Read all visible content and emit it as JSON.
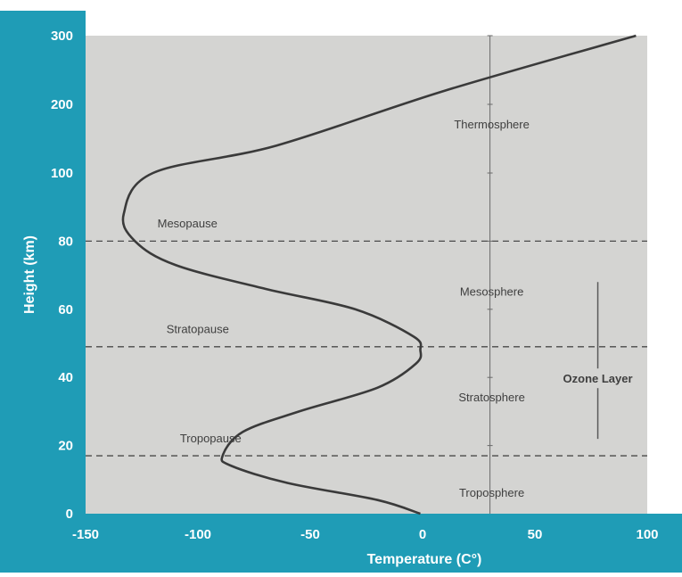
{
  "colors": {
    "frame": "#1f9cb6",
    "plot_bg": "#d4d4d2",
    "curve": "#3a3a3a",
    "dashed": "#4a4a4a",
    "text_dark": "#3f3f3f",
    "tick_text": "#ffffff"
  },
  "chart_data": {
    "type": "line",
    "title": "",
    "xlabel": "Temperature (C°)",
    "ylabel": "Height (km)",
    "xlim": [
      -150,
      100
    ],
    "xticks": [
      -150,
      -100,
      -50,
      0,
      50,
      100
    ],
    "xtick_labels": [
      "-150",
      "-100",
      "-50",
      "0",
      "50",
      "100"
    ],
    "ytick_labels": [
      "0",
      "20",
      "40",
      "60",
      "80",
      "100",
      "200",
      "300"
    ],
    "y_axis_note": "non-linear above 100 km",
    "grid": false,
    "series": [
      {
        "name": "",
        "points": [
          {
            "x": -1,
            "y": 0
          },
          {
            "x": -20,
            "y": 4
          },
          {
            "x": -60,
            "y": 9
          },
          {
            "x": -85,
            "y": 14
          },
          {
            "x": -89,
            "y": 17
          },
          {
            "x": -80,
            "y": 24
          },
          {
            "x": -55,
            "y": 30
          },
          {
            "x": -20,
            "y": 37
          },
          {
            "x": -3,
            "y": 44
          },
          {
            "x": -1,
            "y": 48
          },
          {
            "x": -4,
            "y": 52
          },
          {
            "x": -30,
            "y": 60
          },
          {
            "x": -70,
            "y": 66
          },
          {
            "x": -110,
            "y": 73
          },
          {
            "x": -128,
            "y": 80
          },
          {
            "x": -133,
            "y": 88
          },
          {
            "x": -120,
            "y": 100
          },
          {
            "x": -65,
            "y": 140
          },
          {
            "x": 10,
            "y": 220
          },
          {
            "x": 95,
            "y": 300
          }
        ]
      }
    ],
    "boundaries": [
      {
        "label": "Tropopause",
        "y": 17
      },
      {
        "label": "Stratopause",
        "y": 49
      },
      {
        "label": "Mesopause",
        "y": 80
      }
    ],
    "layers": [
      {
        "label": "Troposphere",
        "x": 30,
        "y": 5
      },
      {
        "label": "Stratosphere",
        "x": 30,
        "y": 33
      },
      {
        "label": "Mesosphere",
        "x": 30,
        "y": 64
      },
      {
        "label": "Thermosphere",
        "x": 30,
        "y": 165
      }
    ],
    "boundary_label_pos": [
      {
        "label": "Tropopause",
        "x": -108,
        "y": 21
      },
      {
        "label": "Stratopause",
        "x": -114,
        "y": 53
      },
      {
        "label": "Mesopause",
        "x": -118,
        "y": 84
      }
    ],
    "reference_line_x": 30,
    "ozone": {
      "label": "Ozone Layer",
      "y_from": 23,
      "y_to": 68,
      "x": 78
    }
  }
}
